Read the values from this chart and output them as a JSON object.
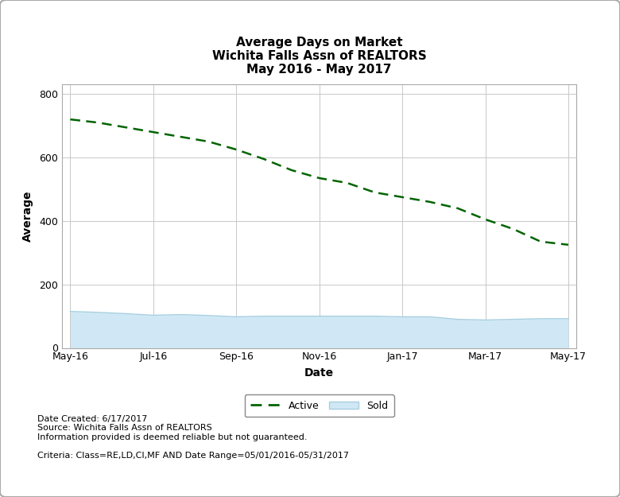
{
  "title": "Average Days on Market\nWichita Falls Assn of REALTORS\nMay 2016 - May 2017",
  "xlabel": "Date",
  "ylabel": "Average",
  "xlabels": [
    "May-16",
    "Jul-16",
    "Sep-16",
    "Nov-16",
    "Jan-17",
    "Mar-17",
    "May-17"
  ],
  "active_values": [
    720,
    710,
    695,
    680,
    665,
    650,
    625,
    595,
    560,
    535,
    520,
    490,
    475,
    460,
    440,
    405,
    375,
    335,
    325
  ],
  "sold_values": [
    115,
    112,
    108,
    103,
    105,
    102,
    98,
    100,
    100,
    100,
    100,
    100,
    98,
    98,
    90,
    88,
    90,
    92,
    92
  ],
  "x_indices": [
    0,
    1,
    2,
    3,
    4,
    5,
    6,
    7,
    8,
    9,
    10,
    11,
    12,
    13,
    14,
    15,
    16,
    17,
    18
  ],
  "xtick_positions": [
    0,
    3,
    6,
    9,
    12,
    15,
    18
  ],
  "ylim": [
    0,
    830
  ],
  "yticks": [
    0,
    200,
    400,
    600,
    800
  ],
  "active_color": "#006400",
  "sold_fill_color": "#d0e8f5",
  "sold_line_color": "#a8cfe0",
  "grid_color": "#c8c8c8",
  "bg_color": "#ffffff",
  "plot_bg_color": "#ffffff",
  "border_color": "#aaaaaa",
  "footer_text": "Date Created: 6/17/2017\nSource: Wichita Falls Assn of REALTORS\nInformation provided is deemed reliable but not guaranteed.\n\nCriteria: Class=RE,LD,CI,MF AND Date Range=05/01/2016-05/31/2017",
  "legend_labels": [
    "Active",
    "Sold"
  ],
  "title_fontsize": 11,
  "axis_label_fontsize": 10,
  "tick_fontsize": 9,
  "footer_fontsize": 8
}
